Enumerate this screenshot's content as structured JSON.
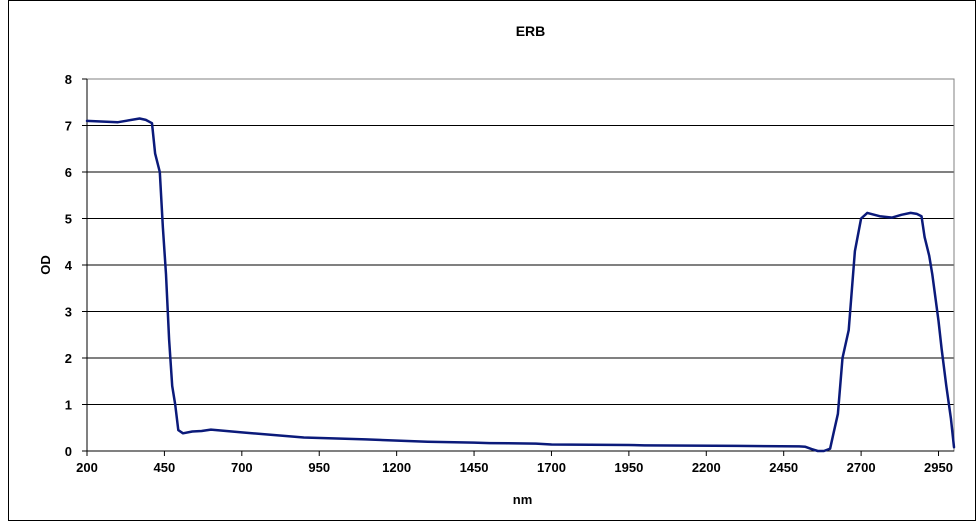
{
  "chart_data": {
    "type": "line",
    "title": "ERB",
    "xlabel": "nm",
    "ylabel": "OD",
    "xlim": [
      200,
      3000
    ],
    "ylim": [
      0,
      8
    ],
    "x_ticks": [
      200,
      450,
      700,
      950,
      1200,
      1450,
      1700,
      1950,
      2200,
      2450,
      2700,
      2950
    ],
    "y_ticks": [
      0,
      1,
      2,
      3,
      4,
      5,
      6,
      7,
      8
    ],
    "grid": "horizontal",
    "legend": "none",
    "series": [
      {
        "color": "#0b1a7a",
        "x": [
          200,
          300,
          370,
          390,
          410,
          420,
          435,
          445,
          455,
          465,
          475,
          485,
          495,
          510,
          540,
          570,
          600,
          700,
          900,
          1100,
          1300,
          1450,
          1500,
          1650,
          1700,
          1950,
          2000,
          2300,
          2500,
          2520,
          2540,
          2560,
          2580,
          2600,
          2610,
          2625,
          2640,
          2660,
          2680,
          2700,
          2720,
          2760,
          2800,
          2830,
          2860,
          2880,
          2895,
          2905,
          2920,
          2930,
          2950,
          2960,
          2975,
          2990,
          3000
        ],
        "y": [
          7.1,
          7.07,
          7.15,
          7.12,
          7.05,
          6.4,
          6.0,
          4.8,
          3.8,
          2.4,
          1.4,
          1.0,
          0.45,
          0.38,
          0.42,
          0.43,
          0.46,
          0.4,
          0.29,
          0.25,
          0.2,
          0.18,
          0.17,
          0.16,
          0.14,
          0.13,
          0.12,
          0.11,
          0.1,
          0.09,
          0.04,
          0.0,
          0.0,
          0.05,
          0.35,
          0.8,
          2.0,
          2.6,
          4.3,
          5.0,
          5.12,
          5.05,
          5.02,
          5.08,
          5.12,
          5.1,
          5.05,
          4.6,
          4.2,
          3.8,
          2.8,
          2.2,
          1.4,
          0.7,
          0.08
        ]
      }
    ]
  }
}
